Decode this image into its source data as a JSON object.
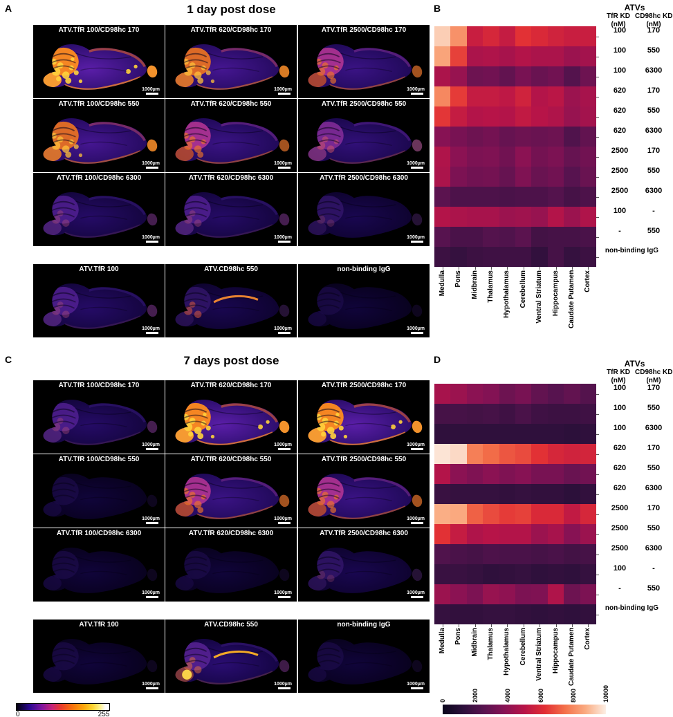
{
  "image_colorbar": {
    "min": "0",
    "max": "255"
  },
  "panels": {
    "A": {
      "letter": "A",
      "title": "1 day post dose",
      "scale_bar_label": "1000µm",
      "tiles": [
        {
          "label": "ATV.TfR 100/CD98hc 170",
          "signal": "vivid"
        },
        {
          "label": "ATV.TfR 620/CD98hc 170",
          "signal": "hot"
        },
        {
          "label": "ATV.TfR 2500/CD98hc 170",
          "signal": "warm"
        },
        {
          "label": "ATV.TfR 100/CD98hc 550",
          "signal": "hot"
        },
        {
          "label": "ATV.TfR 620/CD98hc 550",
          "signal": "warm"
        },
        {
          "label": "ATV.TfR 2500/CD98hc 550",
          "signal": "mid"
        },
        {
          "label": "ATV.TfR 100/CD98hc 6300",
          "signal": "dim"
        },
        {
          "label": "ATV.TfR 620/CD98hc 6300",
          "signal": "dim"
        },
        {
          "label": "ATV.TfR 2500/CD98hc 6300",
          "signal": "verydim"
        }
      ],
      "extra_tiles": [
        {
          "label": "ATV.TfR 100",
          "signal": "dim"
        },
        {
          "label": "ATV.CD98hc 550",
          "signal": "streak"
        },
        {
          "label": "non-binding IgG",
          "signal": "dark"
        }
      ]
    },
    "C": {
      "letter": "C",
      "title": "7 days post dose",
      "scale_bar_label": "1000µm",
      "tiles": [
        {
          "label": "ATV.TfR 100/CD98hc 170",
          "signal": "dim"
        },
        {
          "label": "ATV.TfR 620/CD98hc 170",
          "signal": "vivid"
        },
        {
          "label": "ATV.TfR 2500/CD98hc 170",
          "signal": "vivid"
        },
        {
          "label": "ATV.TfR 100/CD98hc 550",
          "signal": "dark"
        },
        {
          "label": "ATV.TfR 620/CD98hc 550",
          "signal": "warm"
        },
        {
          "label": "ATV.TfR 2500/CD98hc 550",
          "signal": "warm"
        },
        {
          "label": "ATV.TfR 100/CD98hc 6300",
          "signal": "dark"
        },
        {
          "label": "ATV.TfR 620/CD98hc 6300",
          "signal": "dark"
        },
        {
          "label": "ATV.TfR 2500/CD98hc 6300",
          "signal": "verydim"
        }
      ],
      "extra_tiles": [
        {
          "label": "ATV.TfR 100",
          "signal": "dark"
        },
        {
          "label": "ATV.CD98hc 550",
          "signal": "streakBright"
        },
        {
          "label": "non-binding IgG",
          "signal": "dark"
        }
      ]
    },
    "B": {
      "letter": "B",
      "table": {
        "title": "ATVs",
        "col1_header": "TfR KD",
        "col2_header": "CD98hc KD",
        "unit": "(nM)",
        "rows": [
          {
            "tfr_kd": "100",
            "cd98hc_kd": "170"
          },
          {
            "tfr_kd": "100",
            "cd98hc_kd": "550"
          },
          {
            "tfr_kd": "100",
            "cd98hc_kd": "6300"
          },
          {
            "tfr_kd": "620",
            "cd98hc_kd": "170"
          },
          {
            "tfr_kd": "620",
            "cd98hc_kd": "550"
          },
          {
            "tfr_kd": "620",
            "cd98hc_kd": "6300"
          },
          {
            "tfr_kd": "2500",
            "cd98hc_kd": "170"
          },
          {
            "tfr_kd": "2500",
            "cd98hc_kd": "550"
          },
          {
            "tfr_kd": "2500",
            "cd98hc_kd": "6300"
          },
          {
            "tfr_kd": "100",
            "cd98hc_kd": "-"
          },
          {
            "tfr_kd": "-",
            "cd98hc_kd": "550"
          },
          {
            "label": "non-binding IgG"
          }
        ]
      }
    },
    "D": {
      "letter": "D",
      "table": {
        "title": "ATVs",
        "col1_header": "TfR KD",
        "col2_header": "CD98hc KD",
        "unit": "(nM)",
        "rows": [
          {
            "tfr_kd": "100",
            "cd98hc_kd": "170"
          },
          {
            "tfr_kd": "100",
            "cd98hc_kd": "550"
          },
          {
            "tfr_kd": "100",
            "cd98hc_kd": "6300"
          },
          {
            "tfr_kd": "620",
            "cd98hc_kd": "170"
          },
          {
            "tfr_kd": "620",
            "cd98hc_kd": "550"
          },
          {
            "tfr_kd": "620",
            "cd98hc_kd": "6300"
          },
          {
            "tfr_kd": "2500",
            "cd98hc_kd": "170"
          },
          {
            "tfr_kd": "2500",
            "cd98hc_kd": "550"
          },
          {
            "tfr_kd": "2500",
            "cd98hc_kd": "6300"
          },
          {
            "tfr_kd": "100",
            "cd98hc_kd": "-"
          },
          {
            "tfr_kd": "-",
            "cd98hc_kd": "550"
          },
          {
            "label": "non-binding IgG"
          }
        ]
      },
      "colorbar": {
        "ticks": [
          "0",
          "2000",
          "4000",
          "6000",
          "8000",
          "10000"
        ]
      }
    }
  },
  "chart_data": [
    {
      "type": "heatmap",
      "panel": "B",
      "title": "1 day post dose",
      "columns": [
        "Medulla",
        "Pons",
        "Midbrain",
        "Thalamus",
        "Hypothalamus",
        "Cerebellum",
        "Ventral Striatum",
        "Hippocampus",
        "Caudate Putamen",
        "Cortex"
      ],
      "rows": [
        "TfR 100/CD98hc 170",
        "TfR 100/CD98hc 550",
        "TfR 100/CD98hc 6300",
        "TfR 620/CD98hc 170",
        "TfR 620/CD98hc 550",
        "TfR 620/CD98hc 6300",
        "TfR 2500/CD98hc 170",
        "TfR 2500/CD98hc 550",
        "TfR 2500/CD98hc 6300",
        "TfR 100/-",
        "-/CD98hc 550",
        "non-binding IgG"
      ],
      "values": [
        [
          9400,
          8200,
          5500,
          5900,
          5400,
          6300,
          6000,
          5700,
          5500,
          5500
        ],
        [
          8600,
          6600,
          4700,
          4800,
          4600,
          4900,
          4700,
          4700,
          4300,
          4500
        ],
        [
          4700,
          4200,
          3100,
          3200,
          2800,
          3400,
          3000,
          3200,
          2400,
          3100
        ],
        [
          8000,
          6500,
          5400,
          5400,
          5200,
          5700,
          4900,
          5100,
          4300,
          4600
        ],
        [
          6400,
          5400,
          4900,
          5000,
          4900,
          5300,
          5000,
          4800,
          4200,
          4500
        ],
        [
          3800,
          3400,
          3100,
          3300,
          2900,
          3100,
          3000,
          3100,
          2300,
          2800
        ],
        [
          4800,
          3900,
          3500,
          3600,
          3200,
          3900,
          3300,
          3500,
          2900,
          3200
        ],
        [
          4700,
          3500,
          3200,
          3300,
          2900,
          3600,
          3000,
          3200,
          2500,
          3000
        ],
        [
          2600,
          2200,
          2200,
          2200,
          2100,
          2200,
          2200,
          2400,
          2000,
          2200
        ],
        [
          4900,
          4700,
          4600,
          4600,
          4300,
          4400,
          4200,
          4900,
          4300,
          4800
        ],
        [
          2500,
          2100,
          2100,
          2400,
          2300,
          2600,
          1900,
          2000,
          2000,
          2100
        ],
        [
          1700,
          1500,
          1700,
          1800,
          1800,
          1800,
          1400,
          2000,
          1500,
          1700
        ]
      ],
      "vmin": 0,
      "vmax": 10000,
      "colormap": "rocket",
      "colorbar_ticks": [
        0,
        2000,
        4000,
        6000,
        8000,
        10000
      ]
    },
    {
      "type": "heatmap",
      "panel": "D",
      "title": "7 days post dose",
      "columns": [
        "Medulla",
        "Pons",
        "Midbrain",
        "Thalamus",
        "Hypothalamus",
        "Cerebellum",
        "Ventral Striatum",
        "Hippocampus",
        "Caudate Putamen",
        "Cortex"
      ],
      "rows": [
        "TfR 100/CD98hc 170",
        "TfR 100/CD98hc 550",
        "TfR 100/CD98hc 6300",
        "TfR 620/CD98hc 170",
        "TfR 620/CD98hc 550",
        "TfR 620/CD98hc 6300",
        "TfR 2500/CD98hc 170",
        "TfR 2500/CD98hc 550",
        "TfR 2500/CD98hc 6300",
        "TfR 100/-",
        "-/CD98hc 550",
        "non-binding IgG"
      ],
      "values": [
        [
          4600,
          4300,
          3900,
          3700,
          3100,
          3400,
          2800,
          2500,
          2800,
          2400
        ],
        [
          2000,
          2000,
          1900,
          2000,
          1800,
          2100,
          1800,
          1700,
          1700,
          1800
        ],
        [
          1300,
          1300,
          1300,
          1300,
          1300,
          1300,
          1300,
          1300,
          1200,
          1300
        ],
        [
          9800,
          9600,
          7800,
          7400,
          7000,
          6800,
          6300,
          5900,
          5700,
          5800
        ],
        [
          4900,
          3900,
          3600,
          3900,
          3600,
          3800,
          3400,
          3400,
          3000,
          3200
        ],
        [
          1600,
          1500,
          1500,
          1500,
          1400,
          1500,
          1400,
          1400,
          1200,
          1400
        ],
        [
          8800,
          8700,
          7200,
          6800,
          6500,
          6600,
          6000,
          6000,
          5300,
          5900
        ],
        [
          6300,
          5400,
          4800,
          5000,
          4900,
          4900,
          4300,
          4600,
          3800,
          4300
        ],
        [
          2300,
          2100,
          2000,
          2200,
          2100,
          2100,
          2000,
          2100,
          1900,
          2000
        ],
        [
          1600,
          1600,
          1500,
          1300,
          1400,
          1500,
          1300,
          1400,
          1300,
          1500
        ],
        [
          4300,
          3900,
          3500,
          4200,
          4000,
          3500,
          3600,
          4800,
          3100,
          3500
        ],
        [
          1500,
          1400,
          1400,
          1500,
          1500,
          1400,
          1300,
          1400,
          1300,
          1400
        ]
      ],
      "vmin": 0,
      "vmax": 10000,
      "colormap": "rocket",
      "colorbar_ticks": [
        0,
        2000,
        4000,
        6000,
        8000,
        10000
      ]
    }
  ]
}
